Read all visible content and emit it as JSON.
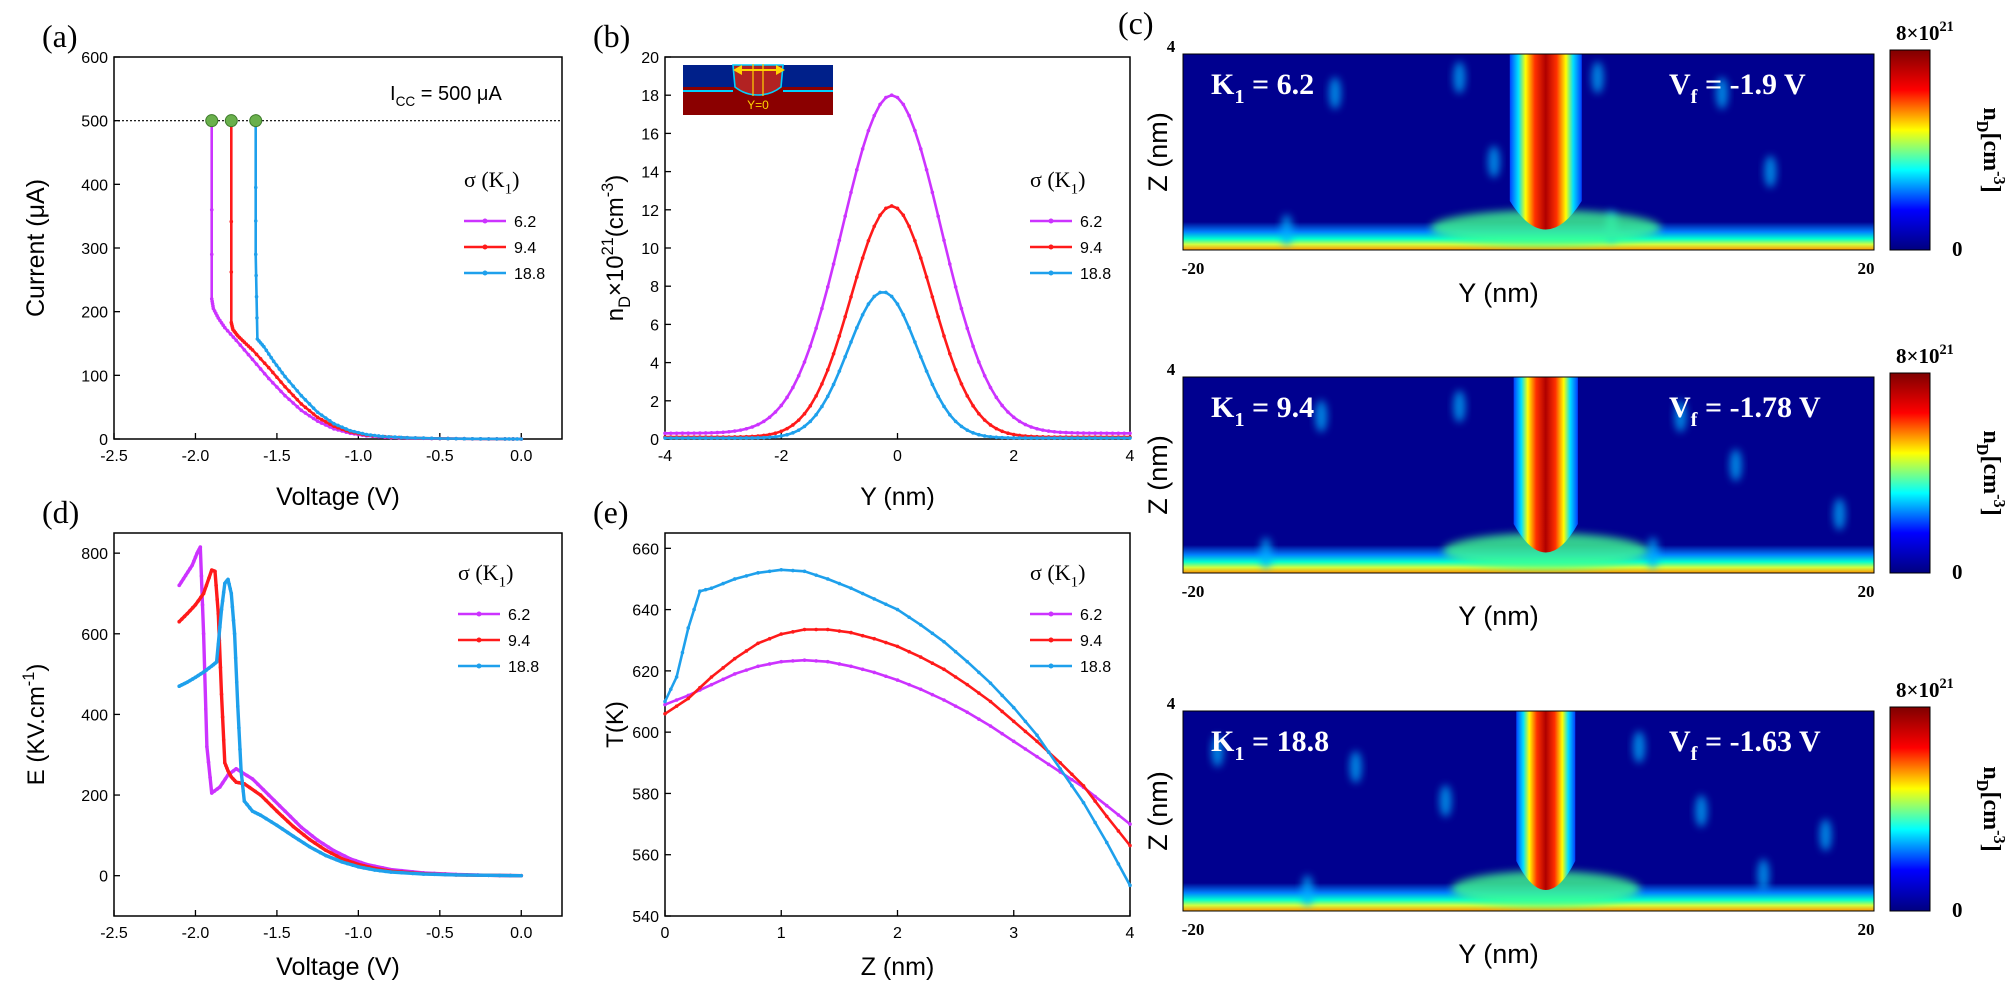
{
  "chart_data": [
    {
      "id": "a",
      "type": "line",
      "panel_label": "(a)",
      "xlabel": "Voltage (V)",
      "ylabel": "Current (μA)",
      "xlim": [
        -2.5,
        0.25
      ],
      "ylim": [
        0,
        600
      ],
      "xticks": [
        -2.5,
        -2.0,
        -1.5,
        -1.0,
        -0.5,
        0.0
      ],
      "xtick_labels": [
        "-2.5",
        "-2.0",
        "-1.5",
        "-1.0",
        "-0.5",
        "0.0"
      ],
      "yticks": [
        0,
        100,
        200,
        300,
        400,
        500,
        600
      ],
      "ytick_labels": [
        "0",
        "100",
        "200",
        "300",
        "400",
        "500",
        "600"
      ],
      "annotation": "I",
      "annotation_sub": "CC",
      "annotation_rest": " = 500 μA",
      "compliance_current": 500,
      "legend_title": "σ (K",
      "legend_title_sub": "1",
      "legend_title_end": ")",
      "series": [
        {
          "name": "6.2",
          "color": "#cc33ff",
          "x": [
            -1.9,
            -1.9,
            -1.89,
            -1.86,
            -1.82,
            -1.75,
            -1.65,
            -1.55,
            -1.45,
            -1.35,
            -1.25,
            -1.15,
            -1.05,
            -0.95,
            -0.8,
            -0.6,
            -0.4,
            -0.2,
            0.0
          ],
          "y": [
            500,
            220,
            205,
            190,
            175,
            155,
            125,
            95,
            68,
            45,
            28,
            16,
            9,
            5,
            2,
            1,
            0.5,
            0.2,
            0
          ]
        },
        {
          "name": "9.4",
          "color": "#ff1a1a",
          "x": [
            -1.78,
            -1.78,
            -1.77,
            -1.74,
            -1.7,
            -1.65,
            -1.55,
            -1.45,
            -1.35,
            -1.25,
            -1.15,
            -1.05,
            -0.95,
            -0.8,
            -0.6,
            -0.4,
            -0.2,
            0.0
          ],
          "y": [
            500,
            183,
            172,
            162,
            152,
            140,
            112,
            82,
            55,
            34,
            20,
            11,
            6,
            3,
            1.2,
            0.5,
            0.2,
            0
          ]
        },
        {
          "name": "18.8",
          "color": "#1ea0ec",
          "x": [
            -1.63,
            -1.63,
            -1.62,
            -1.58,
            -1.52,
            -1.45,
            -1.35,
            -1.25,
            -1.15,
            -1.05,
            -0.95,
            -0.85,
            -0.7,
            -0.5,
            -0.3,
            -0.1,
            0.0
          ],
          "y": [
            500,
            290,
            157,
            145,
            122,
            98,
            68,
            42,
            24,
            13,
            7,
            4,
            2,
            0.8,
            0.3,
            0.1,
            0
          ]
        }
      ]
    },
    {
      "id": "b",
      "type": "line",
      "panel_label": "(b)",
      "xlabel": "Y (nm)",
      "ylabel": "n_D×10^21(cm^-3)",
      "ylabel_parts": [
        "n",
        "D",
        "×10",
        "21",
        "(cm",
        "-3",
        ")"
      ],
      "xlim": [
        -4,
        4
      ],
      "ylim": [
        0,
        20
      ],
      "xticks": [
        -4,
        -2,
        0,
        2,
        4
      ],
      "xtick_labels": [
        "-4",
        "-2",
        "0",
        "2",
        "4"
      ],
      "yticks": [
        0,
        2,
        4,
        6,
        8,
        10,
        12,
        14,
        16,
        18,
        20
      ],
      "ytick_labels": [
        "0",
        "2",
        "4",
        "6",
        "8",
        "10",
        "12",
        "14",
        "16",
        "18",
        "20"
      ],
      "inset_label": "Y=0",
      "legend_title": "σ (K",
      "legend_title_sub": "1",
      "legend_title_end": ")",
      "series": [
        {
          "name": "6.2",
          "color": "#cc33ff",
          "peak": 18.0,
          "center": -0.1,
          "sigma": 0.85,
          "base": 0.3
        },
        {
          "name": "9.4",
          "color": "#ff1a1a",
          "peak": 12.2,
          "center": -0.1,
          "sigma": 0.7,
          "base": 0.1
        },
        {
          "name": "18.8",
          "color": "#1ea0ec",
          "peak": 7.7,
          "center": -0.25,
          "sigma": 0.6,
          "base": 0.05
        }
      ]
    },
    {
      "id": "d",
      "type": "line",
      "panel_label": "(d)",
      "xlabel": "Voltage (V)",
      "ylabel": "E (KV.cm^-1)",
      "ylabel_parts": [
        "E (KV.cm",
        "-1",
        ")"
      ],
      "xlim": [
        -2.5,
        0.25
      ],
      "ylim": [
        -100,
        850
      ],
      "xticks": [
        -2.5,
        -2.0,
        -1.5,
        -1.0,
        -0.5,
        0.0
      ],
      "xtick_labels": [
        "-2.5",
        "-2.0",
        "-1.5",
        "-1.0",
        "-0.5",
        "0.0"
      ],
      "yticks": [
        0,
        200,
        400,
        600,
        800
      ],
      "ytick_labels": [
        "0",
        "200",
        "400",
        "600",
        "800"
      ],
      "legend_title": "σ (K",
      "legend_title_sub": "1",
      "legend_title_end": ")",
      "series": [
        {
          "name": "6.2",
          "color": "#cc33ff",
          "x": [
            -2.1,
            -2.06,
            -2.02,
            -1.99,
            -1.97,
            -1.95,
            -1.93,
            -1.9,
            -1.85,
            -1.8,
            -1.75,
            -1.65,
            -1.55,
            -1.45,
            -1.35,
            -1.25,
            -1.15,
            -1.05,
            -0.95,
            -0.8,
            -0.6,
            -0.4,
            -0.2,
            0.0
          ],
          "y": [
            720,
            745,
            770,
            800,
            815,
            600,
            320,
            205,
            220,
            250,
            265,
            240,
            200,
            160,
            120,
            88,
            62,
            42,
            28,
            15,
            7,
            3,
            1,
            0
          ]
        },
        {
          "name": "9.4",
          "color": "#ff1a1a",
          "x": [
            -2.1,
            -2.05,
            -2.0,
            -1.95,
            -1.9,
            -1.88,
            -1.86,
            -1.84,
            -1.82,
            -1.8,
            -1.78,
            -1.75,
            -1.7,
            -1.6,
            -1.5,
            -1.4,
            -1.3,
            -1.2,
            -1.1,
            -1.0,
            -0.9,
            -0.8,
            -0.6,
            -0.4,
            -0.2,
            0.0
          ],
          "y": [
            630,
            650,
            672,
            700,
            758,
            755,
            650,
            450,
            280,
            260,
            245,
            232,
            228,
            200,
            160,
            122,
            90,
            63,
            42,
            28,
            18,
            11,
            5,
            2,
            1,
            0
          ]
        },
        {
          "name": "18.8",
          "color": "#1ea0ec",
          "x": [
            -2.1,
            -2.05,
            -2.0,
            -1.95,
            -1.9,
            -1.87,
            -1.84,
            -1.82,
            -1.8,
            -1.78,
            -1.76,
            -1.74,
            -1.72,
            -1.7,
            -1.65,
            -1.6,
            -1.5,
            -1.4,
            -1.3,
            -1.2,
            -1.1,
            -1.0,
            -0.9,
            -0.8,
            -0.6,
            -0.4,
            -0.2,
            0.0
          ],
          "y": [
            470,
            480,
            492,
            505,
            520,
            530,
            660,
            725,
            735,
            700,
            600,
            420,
            260,
            185,
            160,
            150,
            125,
            98,
            72,
            50,
            34,
            22,
            14,
            9,
            4,
            2,
            1,
            0
          ]
        }
      ]
    },
    {
      "id": "e",
      "type": "line",
      "panel_label": "(e)",
      "xlabel": "Z (nm)",
      "ylabel": "T(K)",
      "xlim": [
        0,
        4
      ],
      "ylim": [
        540,
        665
      ],
      "xticks": [
        0,
        1,
        2,
        3,
        4
      ],
      "xtick_labels": [
        "0",
        "1",
        "2",
        "3",
        "4"
      ],
      "yticks": [
        540,
        560,
        580,
        600,
        620,
        640,
        660
      ],
      "ytick_labels": [
        "540",
        "560",
        "580",
        "600",
        "620",
        "640",
        "660"
      ],
      "legend_title": "σ (K",
      "legend_title_sub": "1",
      "legend_title_end": ")",
      "series": [
        {
          "name": "6.2",
          "color": "#cc33ff",
          "x": [
            0,
            0.2,
            0.4,
            0.6,
            0.8,
            1.0,
            1.2,
            1.4,
            1.6,
            1.8,
            2.0,
            2.2,
            2.4,
            2.6,
            2.8,
            3.0,
            3.2,
            3.4,
            3.6,
            3.8,
            4.0
          ],
          "y": [
            609,
            612,
            615.5,
            619,
            621.5,
            623,
            623.5,
            623,
            621.5,
            619.5,
            617,
            614,
            610.5,
            606.5,
            602,
            597,
            592,
            587,
            582,
            576,
            570
          ]
        },
        {
          "name": "9.4",
          "color": "#ff1a1a",
          "x": [
            0,
            0.2,
            0.4,
            0.6,
            0.8,
            1.0,
            1.2,
            1.4,
            1.6,
            1.8,
            2.0,
            2.2,
            2.4,
            2.6,
            2.8,
            3.0,
            3.2,
            3.4,
            3.6,
            3.8,
            4.0
          ],
          "y": [
            606,
            611,
            618,
            624,
            629,
            632,
            633.5,
            633.5,
            632.5,
            630.5,
            628,
            624.5,
            620.5,
            615.5,
            610,
            603.5,
            597,
            590,
            582.5,
            572.5,
            563
          ]
        },
        {
          "name": "18.8",
          "color": "#1ea0ec",
          "x": [
            0,
            0.1,
            0.2,
            0.3,
            0.4,
            0.6,
            0.8,
            1.0,
            1.2,
            1.4,
            1.6,
            1.8,
            2.0,
            2.2,
            2.4,
            2.6,
            2.8,
            3.0,
            3.2,
            3.4,
            3.6,
            3.8,
            4.0
          ],
          "y": [
            610,
            618,
            634,
            646,
            647,
            650,
            652,
            653,
            652.5,
            650,
            647,
            643.5,
            640,
            635,
            629.5,
            623,
            616,
            608,
            599,
            588,
            577,
            564,
            550
          ]
        }
      ]
    },
    {
      "id": "c",
      "type": "heatmap",
      "panel_label": "(c)",
      "xlabel": "Y (nm)",
      "ylabel": "Z (nm)",
      "x_tick_left": "-20",
      "x_tick_right": "20",
      "y_tick_top": "4",
      "xlim": [
        -20,
        20
      ],
      "ylim": [
        0,
        4
      ],
      "colorbar": {
        "max_label": "8×10",
        "max_exp": "21",
        "min_label": "0",
        "label": "n",
        "label_sub": "D",
        "label_unit": "[cm",
        "label_unit_exp": "-3",
        "label_end": "]",
        "colors": [
          "#00007f",
          "#0000ff",
          "#00ffff",
          "#ffff00",
          "#ff0000",
          "#7f0000"
        ]
      },
      "maps": [
        {
          "k_label": "K",
          "k_sub": "1",
          "k_value": " = 6.2",
          "v_label": "V",
          "v_sub": "f",
          "v_value": " = -1.9 V",
          "filament_width": 1.0
        },
        {
          "k_label": "K",
          "k_sub": "1",
          "k_value": " = 9.4",
          "v_label": "V",
          "v_sub": "f",
          "v_value": " = -1.78 V",
          "filament_width": 0.85
        },
        {
          "k_label": "K",
          "k_sub": "1",
          "k_value": " = 18.8",
          "v_label": "V",
          "v_sub": "f",
          "v_value": " = -1.63 V",
          "filament_width": 0.75
        }
      ]
    }
  ]
}
